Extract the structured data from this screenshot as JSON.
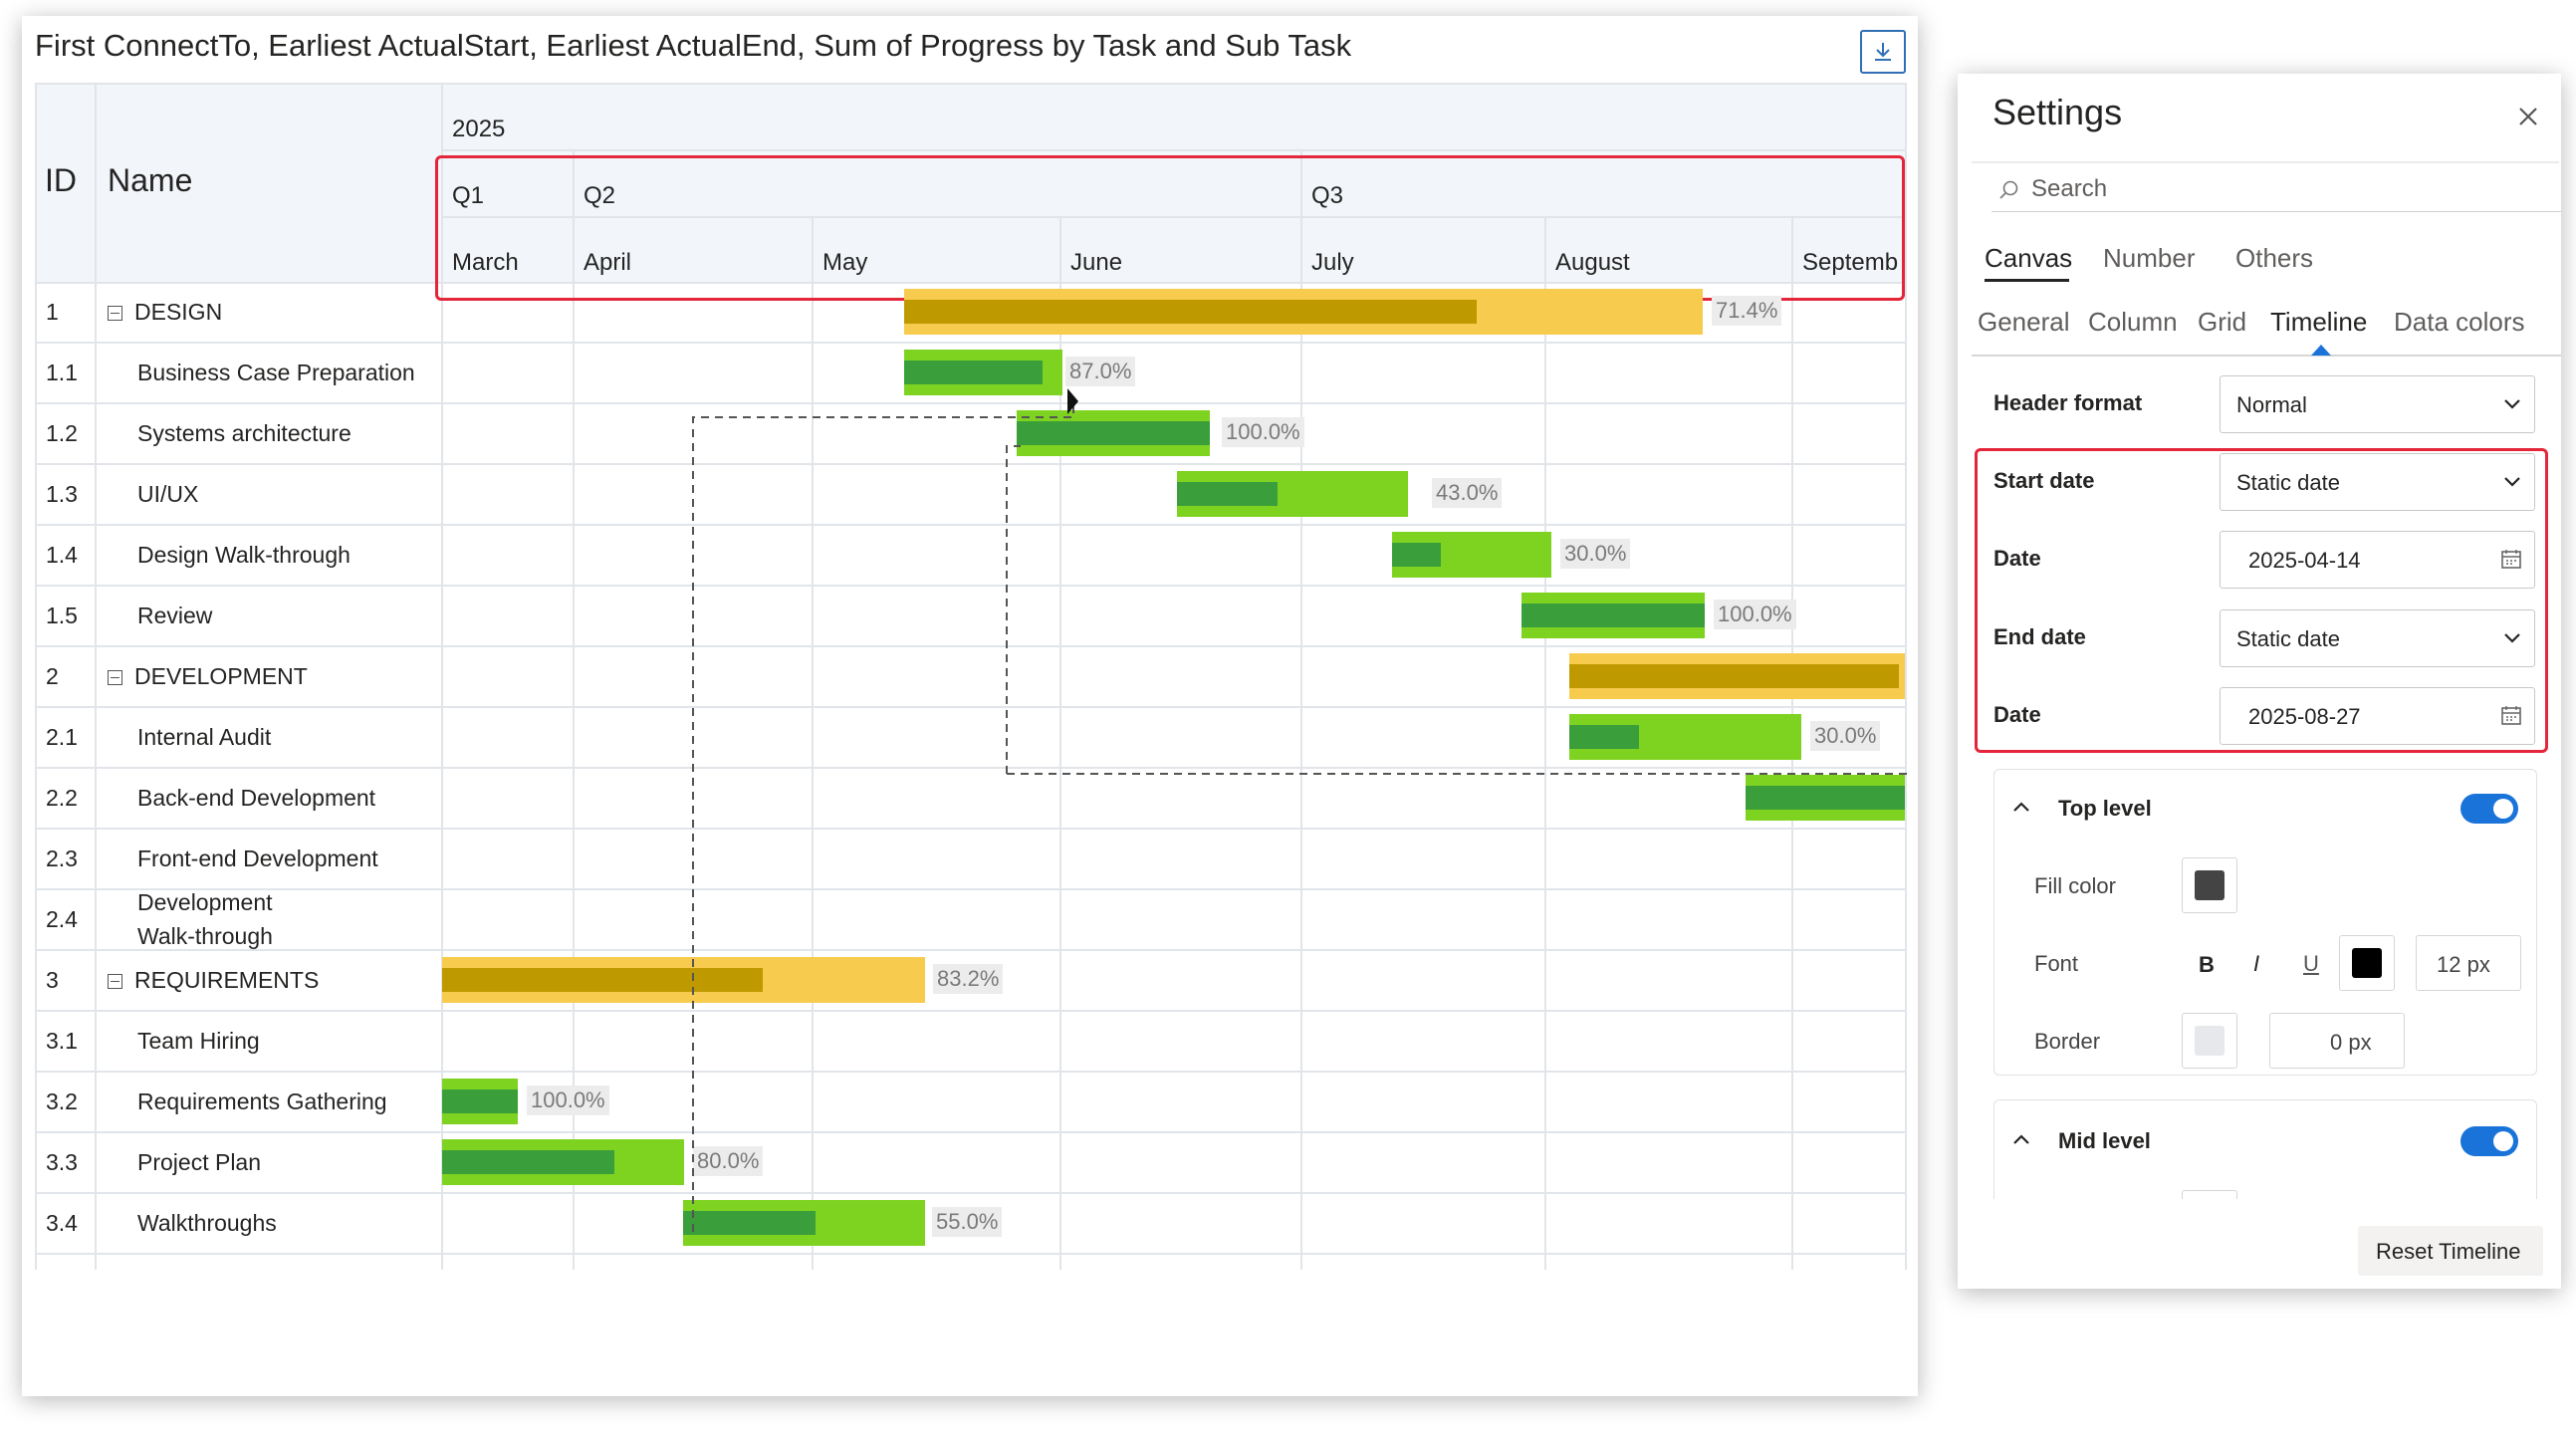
{
  "chart": {
    "title": "First ConnectTo, Earliest ActualStart, Earliest ActualEnd, Sum of Progress by Task and Sub Task",
    "export_icon": "download-icon"
  },
  "columns": {
    "id": "ID",
    "name": "Name"
  },
  "timeline": {
    "year": "2025",
    "quarters": [
      "Q1",
      "Q2",
      "Q3"
    ],
    "months": [
      "March",
      "April",
      "May",
      "June",
      "July",
      "August",
      "Septemb"
    ]
  },
  "rows": [
    {
      "id": "1",
      "name": "DESIGN",
      "group": true,
      "progress": "71.4%"
    },
    {
      "id": "1.1",
      "name": "Business Case Preparation",
      "group": false,
      "progress": "87.0%"
    },
    {
      "id": "1.2",
      "name": "Systems architecture",
      "group": false,
      "progress": "100.0%"
    },
    {
      "id": "1.3",
      "name": "UI/UX",
      "group": false,
      "progress": "43.0%"
    },
    {
      "id": "1.4",
      "name": "Design Walk-through",
      "group": false,
      "progress": "30.0%"
    },
    {
      "id": "1.5",
      "name": "Review",
      "group": false,
      "progress": "100.0%"
    },
    {
      "id": "2",
      "name": "DEVELOPMENT",
      "group": true,
      "progress": ""
    },
    {
      "id": "2.1",
      "name": "Internal Audit",
      "group": false,
      "progress": "30.0%"
    },
    {
      "id": "2.2",
      "name": "Back-end Development",
      "group": false,
      "progress": ""
    },
    {
      "id": "2.3",
      "name": "Front-end Development",
      "group": false,
      "progress": ""
    },
    {
      "id": "2.4",
      "name": "Development Walk-through",
      "group": false,
      "progress": ""
    },
    {
      "id": "3",
      "name": "REQUIREMENTS",
      "group": true,
      "progress": "83.2%"
    },
    {
      "id": "3.1",
      "name": "Team Hiring",
      "group": false,
      "progress": ""
    },
    {
      "id": "3.2",
      "name": "Requirements Gathering",
      "group": false,
      "progress": "100.0%"
    },
    {
      "id": "3.3",
      "name": "Project Plan",
      "group": false,
      "progress": "80.0%"
    },
    {
      "id": "3.4",
      "name": "Walkthroughs",
      "group": false,
      "progress": "55.0%"
    }
  ],
  "colors": {
    "summary_bar": "#f7cb4d",
    "summary_progress": "#bf9900",
    "task_bar": "#7ed321",
    "task_progress": "#3a9e3a",
    "highlight_box": "#e3263a",
    "toggle_on": "#1a73d9"
  },
  "settings": {
    "title": "Settings",
    "close_icon": "close-icon",
    "search_placeholder": "Search",
    "main_tabs": [
      "Canvas",
      "Number",
      "Others"
    ],
    "sub_tabs": [
      "General",
      "Column",
      "Grid",
      "Timeline",
      "Data colors"
    ],
    "active_sub_tab": "Timeline",
    "header_format": {
      "label": "Header format",
      "value": "Normal"
    },
    "start_date": {
      "label": "Start date",
      "value": "Static date"
    },
    "start_date_value": {
      "label": "Date",
      "value": "2025-04-14"
    },
    "end_date": {
      "label": "End date",
      "value": "Static date"
    },
    "end_date_value": {
      "label": "Date",
      "value": "2025-08-27"
    },
    "top_level": {
      "label": "Top level",
      "enabled": true,
      "fill_color_label": "Fill color",
      "fill_color": "#444444",
      "font_label": "Font",
      "bold": "B",
      "italic": "I",
      "underline": "U",
      "font_color": "#000000",
      "font_size": "12 px",
      "border_label": "Border",
      "border_color": "#e6e8eb",
      "border_width": "0 px"
    },
    "mid_level": {
      "label": "Mid level",
      "enabled": true
    },
    "reset_button": "Reset Timeline"
  }
}
